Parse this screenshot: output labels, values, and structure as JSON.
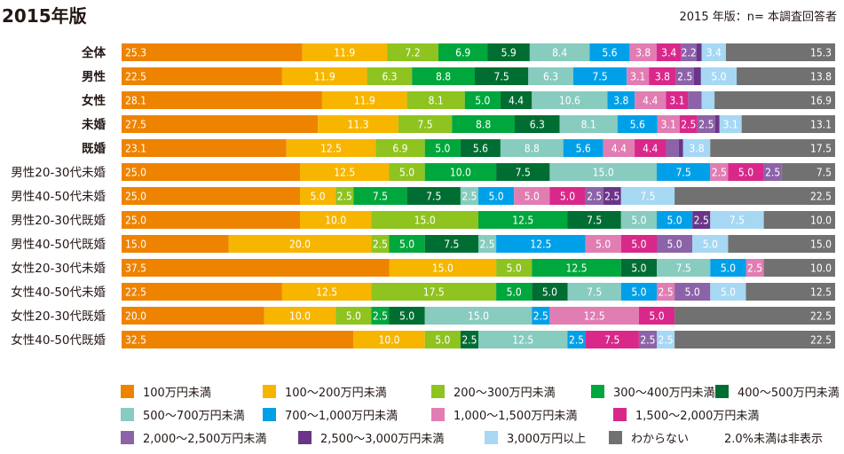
{
  "header": {
    "title": "2015年版",
    "subtitle": "2015 年版：n= 本調査回答者"
  },
  "chart_data": {
    "type": "bar",
    "orientation": "horizontal",
    "stacked": true,
    "percent_stacked": true,
    "title": "2015年版",
    "subtitle": "2015 年版：n= 本調査回答者",
    "xlabel": "",
    "ylabel": "",
    "xlim": [
      0,
      100
    ],
    "grid": false,
    "legend_position": "bottom",
    "note": "2.0%未満は非表示",
    "label_threshold": 2.0,
    "categories": [
      "全体",
      "男性",
      "女性",
      "未婚",
      "既婚",
      "男性20-30代未婚",
      "男性40-50代未婚",
      "男性20-30代既婚",
      "男性40-50代既婚",
      "女性20-30代未婚",
      "女性40-50代未婚",
      "女性20-30代既婚",
      "女性40-50代既婚"
    ],
    "bold_categories": [
      "全体",
      "男性",
      "女性",
      "未婚",
      "既婚"
    ],
    "series": [
      {
        "name": "100万円未満",
        "color": "#EE8300",
        "values": [
          25.3,
          22.5,
          28.1,
          27.5,
          23.1,
          25.0,
          25.0,
          25.0,
          15.0,
          37.5,
          22.5,
          20.0,
          32.5
        ]
      },
      {
        "name": "100〜200万円未満",
        "color": "#F7B500",
        "values": [
          11.9,
          11.9,
          11.9,
          11.3,
          12.5,
          12.5,
          5.0,
          10.0,
          20.0,
          15.0,
          12.5,
          10.0,
          10.0
        ]
      },
      {
        "name": "200〜300万円未満",
        "color": "#8FC31F",
        "values": [
          7.2,
          6.3,
          8.1,
          7.5,
          6.9,
          5.0,
          2.5,
          15.0,
          2.5,
          5.0,
          17.5,
          5.0,
          5.0
        ]
      },
      {
        "name": "300〜400万円未満",
        "color": "#00A73C",
        "values": [
          6.9,
          8.8,
          5.0,
          8.8,
          5.0,
          10.0,
          7.5,
          12.5,
          5.0,
          12.5,
          5.0,
          2.5,
          0
        ]
      },
      {
        "name": "400〜500万円未満",
        "color": "#006E32",
        "values": [
          5.9,
          7.5,
          4.4,
          6.3,
          5.6,
          7.5,
          7.5,
          7.5,
          7.5,
          5.0,
          5.0,
          5.0,
          2.5
        ]
      },
      {
        "name": "500〜700万円未満",
        "color": "#88CBBF",
        "values": [
          8.4,
          6.3,
          10.6,
          8.1,
          8.8,
          15.0,
          2.5,
          5.0,
          2.5,
          7.5,
          7.5,
          15.0,
          12.5
        ]
      },
      {
        "name": "700〜1,000万円未満",
        "color": "#00A0E9",
        "values": [
          5.6,
          7.5,
          3.8,
          5.6,
          5.6,
          7.5,
          5.0,
          5.0,
          12.5,
          5.0,
          5.0,
          2.5,
          2.5
        ]
      },
      {
        "name": "1,000〜1,500万円未満",
        "color": "#E17DB3",
        "values": [
          3.8,
          3.1,
          4.4,
          3.1,
          4.4,
          2.5,
          5.0,
          0,
          5.0,
          2.5,
          2.5,
          12.5,
          0
        ]
      },
      {
        "name": "1,500〜2,000万円未満",
        "color": "#D9288A",
        "values": [
          3.4,
          3.8,
          3.1,
          2.5,
          4.4,
          5.0,
          5.0,
          0,
          5.0,
          0,
          0,
          5.0,
          7.5
        ]
      },
      {
        "name": "2,000〜2,500万円未満",
        "color": "#8C63A8",
        "values": [
          2.2,
          2.5,
          1.9,
          2.5,
          1.8,
          2.5,
          2.5,
          0,
          5.0,
          0,
          5.0,
          0,
          2.5
        ]
      },
      {
        "name": "2,500〜3,000万円未満",
        "color": "#6A3589",
        "values": [
          0.7,
          1.0,
          0,
          0.6,
          0.6,
          0,
          2.5,
          2.5,
          0,
          0,
          0,
          0,
          0
        ]
      },
      {
        "name": "3,000万円以上",
        "color": "#A6D8F4",
        "values": [
          3.4,
          5.0,
          1.8,
          3.1,
          3.8,
          0,
          7.5,
          7.5,
          5.0,
          0,
          5.0,
          0,
          2.5
        ]
      },
      {
        "name": "わからない",
        "color": "#717171",
        "values": [
          15.3,
          13.8,
          16.9,
          13.1,
          17.5,
          7.5,
          22.5,
          10.0,
          15.0,
          10.0,
          12.5,
          22.5,
          22.5
        ]
      }
    ]
  }
}
